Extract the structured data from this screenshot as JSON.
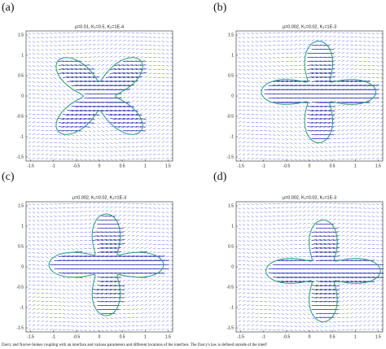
{
  "figure": {
    "panels": [
      {
        "label": "(a)",
        "title": "μ=0.01, K₁=0.5, K₂=1E-4",
        "xlim": [
          -1.6,
          1.6
        ],
        "ylim": [
          -1.6,
          1.6
        ],
        "xticks": [
          -1.5,
          -1,
          -0.5,
          0,
          0.5,
          1,
          1.5
        ],
        "yticks": [
          -1.5,
          -1,
          -0.5,
          0,
          0.5,
          1,
          1.5
        ]
      },
      {
        "label": "(b)",
        "title": "μ=0.002, K₁=0.02, K₂=1E-3",
        "xlim": [
          -1.6,
          1.6
        ],
        "ylim": [
          -1.6,
          1.6
        ],
        "xticks": [
          -1.5,
          -1,
          -0.5,
          0,
          0.5,
          1,
          1.5
        ],
        "yticks": [
          -1.5,
          -1,
          -0.5,
          0,
          0.5,
          1,
          1.5
        ]
      },
      {
        "label": "(c)",
        "title": "μ=0.002, K₁=0.02, K₂=1E-3",
        "xlim": [
          -1.6,
          1.6
        ],
        "ylim": [
          -1.6,
          1.6
        ],
        "xticks": [
          -1.5,
          -1,
          -0.5,
          0,
          0.5,
          1,
          1.5
        ],
        "yticks": [
          -1.5,
          -1,
          -0.5,
          0,
          0.5,
          1,
          1.5
        ]
      },
      {
        "label": "(d)",
        "title": "μ=0.002, K₁=0.02, K₂=1E-3",
        "xlim": [
          -1.6,
          1.6
        ],
        "ylim": [
          -1.6,
          1.6
        ],
        "xticks": [
          -1.5,
          -1,
          -0.5,
          0,
          0.5,
          1,
          1.5
        ],
        "yticks": [
          -1.5,
          -1,
          -0.5,
          0,
          0.5,
          1,
          1.5
        ]
      }
    ],
    "caption": "Darcy and Navier-Stokes coupling with an interface and various parameters and different locations of the interface. The Darcy's law is defined outside of the interf"
  }
}
